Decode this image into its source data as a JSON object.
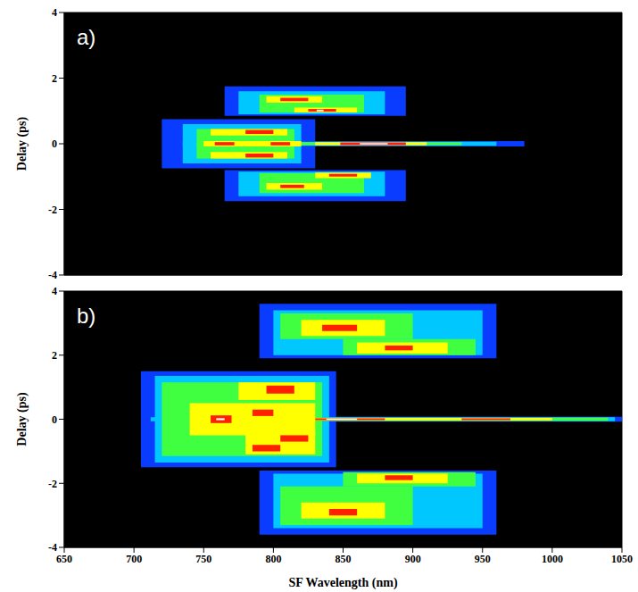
{
  "chart_data": [
    {
      "type": "heatmap",
      "panel": "a)",
      "ylabel": "Delay (ps)",
      "tick_labels": "y",
      "xlim": [
        650,
        1050
      ],
      "xticks": [
        650,
        700,
        750,
        800,
        850,
        900,
        950,
        1000,
        1050
      ],
      "ylim": [
        -4,
        4
      ],
      "yticks": [
        -4,
        -2,
        0,
        2,
        4
      ],
      "color_scale": {
        "values": [
          0.2,
          0.4,
          0.55,
          0.7,
          0.85,
          1
        ],
        "colors": [
          "#0a3cff",
          "#00c8ff",
          "#40ff40",
          "#ffff00",
          "#ff2000",
          "#ffffff"
        ]
      },
      "cells": [
        [
          725,
          980,
          -0.08,
          0.08,
          0.2
        ],
        [
          720,
          830,
          -0.75,
          0.75,
          0.2
        ],
        [
          765,
          895,
          0.85,
          1.75,
          0.2
        ],
        [
          765,
          895,
          -1.75,
          -0.8,
          0.2
        ],
        [
          735,
          960,
          -0.06,
          0.06,
          0.4
        ],
        [
          735,
          820,
          -0.6,
          0.6,
          0.4
        ],
        [
          775,
          880,
          0.9,
          1.6,
          0.4
        ],
        [
          775,
          880,
          -1.6,
          -0.85,
          0.4
        ],
        [
          745,
          935,
          -0.05,
          0.05,
          0.55
        ],
        [
          745,
          815,
          -0.45,
          0.45,
          0.55
        ],
        [
          790,
          865,
          0.95,
          1.5,
          0.55
        ],
        [
          790,
          865,
          -1.5,
          -0.9,
          0.55
        ],
        [
          755,
          810,
          0.25,
          0.45,
          0.7
        ],
        [
          755,
          810,
          -0.45,
          -0.25,
          0.7
        ],
        [
          750,
          820,
          -0.08,
          0.08,
          0.7
        ],
        [
          830,
          910,
          -0.05,
          0.05,
          0.7
        ],
        [
          795,
          835,
          1.25,
          1.45,
          0.7
        ],
        [
          815,
          860,
          0.95,
          1.1,
          0.7
        ],
        [
          795,
          835,
          -1.4,
          -1.2,
          0.7
        ],
        [
          830,
          870,
          -1.05,
          -0.88,
          0.7
        ],
        [
          780,
          800,
          0.3,
          0.42,
          0.85
        ],
        [
          780,
          800,
          -0.42,
          -0.3,
          0.85
        ],
        [
          758,
          772,
          -0.05,
          0.05,
          0.85
        ],
        [
          798,
          812,
          -0.05,
          0.05,
          0.85
        ],
        [
          848,
          895,
          -0.04,
          0.04,
          0.85
        ],
        [
          805,
          825,
          1.3,
          1.4,
          0.85
        ],
        [
          825,
          845,
          0.98,
          1.06,
          0.85
        ],
        [
          805,
          822,
          -1.35,
          -1.25,
          0.85
        ],
        [
          840,
          860,
          -1.0,
          -0.92,
          0.85
        ],
        [
          862,
          882,
          -0.02,
          0.02,
          1
        ],
        [
          831,
          836,
          0.99,
          1.04,
          1
        ]
      ]
    },
    {
      "type": "heatmap",
      "panel": "b)",
      "ylabel": "Delay (ps)",
      "xlabel": "SF Wavelength (nm)",
      "tick_labels": true,
      "xlim": [
        650,
        1050
      ],
      "xticks": [
        650,
        700,
        750,
        800,
        850,
        900,
        950,
        1000,
        1050
      ],
      "ylim": [
        -4,
        4
      ],
      "yticks": [
        -4,
        -2,
        0,
        2,
        4
      ],
      "color_scale": {
        "values": [
          0.2,
          0.4,
          0.55,
          0.7,
          0.85,
          1
        ],
        "colors": [
          "#0a3cff",
          "#00c8ff",
          "#40ff40",
          "#ffff00",
          "#ff2000",
          "#ffffff"
        ]
      },
      "cells": [
        [
          705,
          1050,
          -0.08,
          0.08,
          0.2
        ],
        [
          705,
          845,
          -1.5,
          1.5,
          0.2
        ],
        [
          790,
          960,
          1.9,
          3.6,
          0.2
        ],
        [
          790,
          960,
          -3.6,
          -1.6,
          0.2
        ],
        [
          712,
          1045,
          -0.06,
          0.06,
          0.4
        ],
        [
          715,
          840,
          -1.35,
          1.35,
          0.4
        ],
        [
          800,
          950,
          2.0,
          3.4,
          0.4
        ],
        [
          800,
          950,
          -3.4,
          -1.7,
          0.4
        ],
        [
          720,
          835,
          -1.15,
          1.15,
          0.55
        ],
        [
          805,
          900,
          2.5,
          3.3,
          0.55
        ],
        [
          850,
          945,
          2.0,
          2.5,
          0.55
        ],
        [
          850,
          945,
          -2.1,
          -1.65,
          0.55
        ],
        [
          805,
          900,
          -3.3,
          -2.1,
          0.55
        ],
        [
          760,
          1040,
          -0.05,
          0.05,
          0.55
        ],
        [
          740,
          830,
          -0.5,
          0.5,
          0.7
        ],
        [
          775,
          830,
          0.6,
          1.15,
          0.7
        ],
        [
          780,
          830,
          -1.1,
          -0.4,
          0.7
        ],
        [
          820,
          880,
          2.6,
          3.1,
          0.7
        ],
        [
          860,
          925,
          2.05,
          2.4,
          0.7
        ],
        [
          860,
          925,
          -2.0,
          -1.7,
          0.7
        ],
        [
          820,
          880,
          -3.1,
          -2.6,
          0.7
        ],
        [
          800,
          1000,
          -0.04,
          0.04,
          0.7
        ],
        [
          755,
          770,
          -0.12,
          0.12,
          0.85
        ],
        [
          785,
          800,
          0.1,
          0.3,
          0.85
        ],
        [
          795,
          815,
          0.8,
          1.05,
          0.85
        ],
        [
          805,
          825,
          -0.7,
          -0.5,
          0.85
        ],
        [
          785,
          805,
          -1.0,
          -0.8,
          0.85
        ],
        [
          835,
          860,
          2.75,
          2.95,
          0.85
        ],
        [
          880,
          900,
          2.15,
          2.3,
          0.85
        ],
        [
          880,
          900,
          -1.9,
          -1.75,
          0.85
        ],
        [
          840,
          860,
          -3.0,
          -2.8,
          0.85
        ],
        [
          830,
          880,
          -0.03,
          0.03,
          0.85
        ],
        [
          935,
          970,
          -0.03,
          0.03,
          0.85
        ],
        [
          759,
          765,
          -0.03,
          0.03,
          1
        ],
        [
          838,
          860,
          -0.02,
          0.02,
          1
        ]
      ]
    }
  ]
}
